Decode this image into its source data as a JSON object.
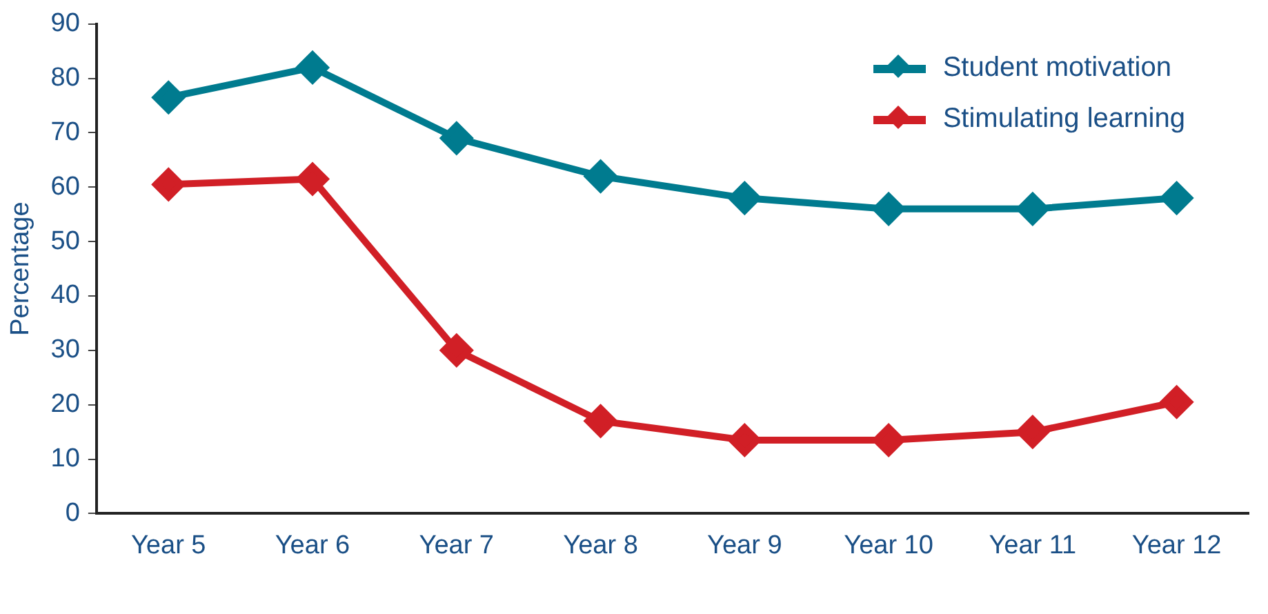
{
  "chart_data": {
    "type": "line",
    "ylabel": "Percentage",
    "categories": [
      "Year 5",
      "Year 6",
      "Year 7",
      "Year 8",
      "Year 9",
      "Year 10",
      "Year 11",
      "Year 12"
    ],
    "series": [
      {
        "name": "Student motivation",
        "color": "#007b8f",
        "values": [
          76.5,
          82,
          69,
          62,
          58,
          56,
          56,
          58
        ]
      },
      {
        "name": "Stimulating learning",
        "color": "#d11f26",
        "values": [
          60.5,
          61.5,
          30,
          17,
          13.5,
          13.5,
          15,
          20.5
        ]
      }
    ],
    "ylim": [
      0,
      90
    ],
    "yticks": [
      0,
      10,
      20,
      30,
      40,
      50,
      60,
      70,
      80,
      90
    ],
    "grid": false,
    "legend": "top right",
    "marker": "diamond",
    "line_style": "solid"
  }
}
